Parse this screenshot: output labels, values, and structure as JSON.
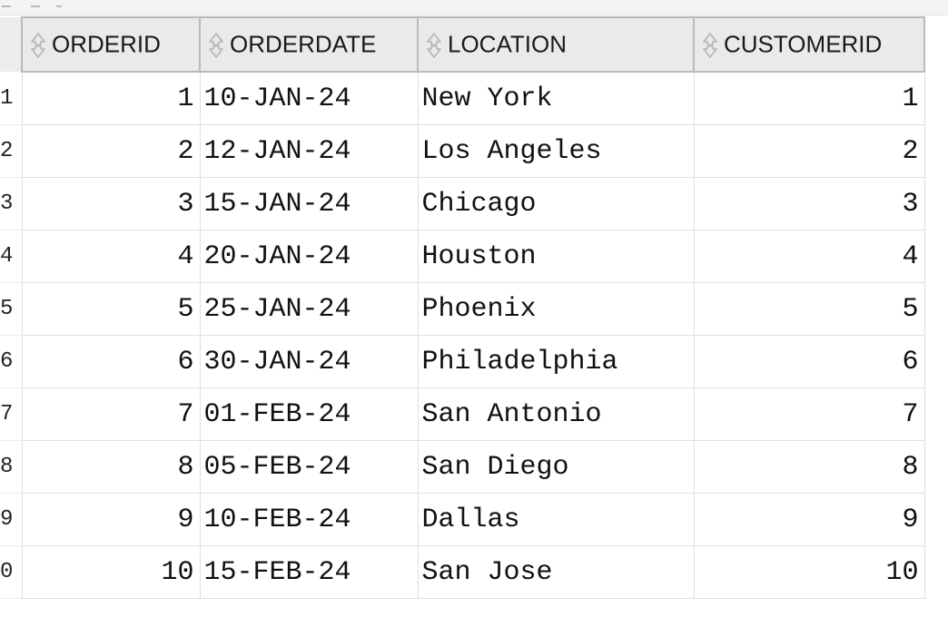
{
  "grid": {
    "columns": [
      {
        "key": "orderid",
        "label": "ORDERID",
        "align": "num"
      },
      {
        "key": "orderdate",
        "label": "ORDERDATE",
        "align": "txt"
      },
      {
        "key": "location",
        "label": "LOCATION",
        "align": "txt"
      },
      {
        "key": "customerid",
        "label": "CUSTOMERID",
        "align": "num"
      }
    ],
    "rows": [
      {
        "rownum": "1",
        "orderid": "1",
        "orderdate": "10-JAN-24",
        "location": "New York",
        "customerid": "1"
      },
      {
        "rownum": "2",
        "orderid": "2",
        "orderdate": "12-JAN-24",
        "location": "Los Angeles",
        "customerid": "2"
      },
      {
        "rownum": "3",
        "orderid": "3",
        "orderdate": "15-JAN-24",
        "location": "Chicago",
        "customerid": "3"
      },
      {
        "rownum": "4",
        "orderid": "4",
        "orderdate": "20-JAN-24",
        "location": "Houston",
        "customerid": "4"
      },
      {
        "rownum": "5",
        "orderid": "5",
        "orderdate": "25-JAN-24",
        "location": "Phoenix",
        "customerid": "5"
      },
      {
        "rownum": "6",
        "orderid": "6",
        "orderdate": "30-JAN-24",
        "location": "Philadelphia",
        "customerid": "6"
      },
      {
        "rownum": "7",
        "orderid": "7",
        "orderdate": "01-FEB-24",
        "location": "San Antonio",
        "customerid": "7"
      },
      {
        "rownum": "8",
        "orderid": "8",
        "orderdate": "05-FEB-24",
        "location": "San Diego",
        "customerid": "8"
      },
      {
        "rownum": "9",
        "orderid": "9",
        "orderdate": "10-FEB-24",
        "location": "Dallas",
        "customerid": "9"
      },
      {
        "rownum": "0",
        "orderid": "10",
        "orderdate": "15-FEB-24",
        "location": "San Jose",
        "customerid": "10"
      }
    ]
  }
}
